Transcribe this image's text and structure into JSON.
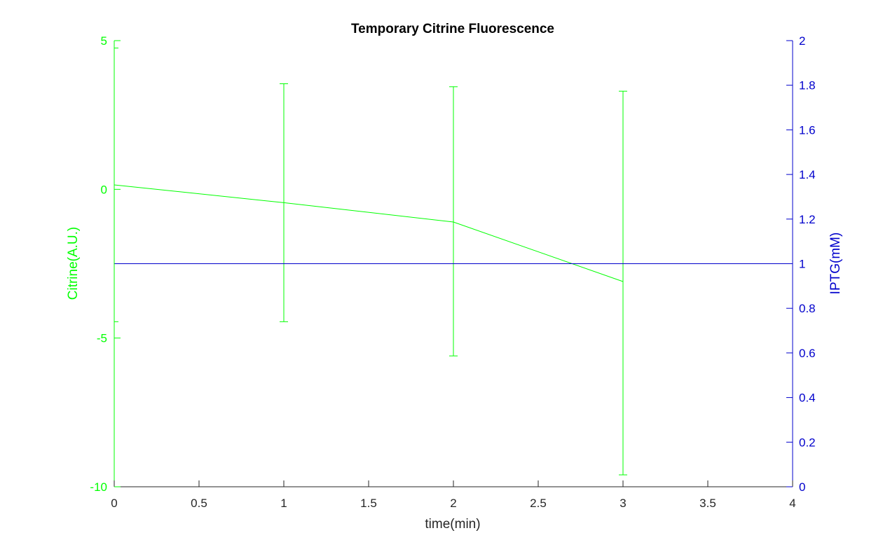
{
  "chart_data": {
    "type": "line",
    "title": "Temporary Citrine Fluorescence",
    "xlabel": "time(min)",
    "ylabel_left": "Citrine(A.U.)",
    "ylabel_right": "IPTG(mM)",
    "xlim": [
      0,
      4
    ],
    "ylim_left": [
      -10,
      5
    ],
    "ylim_right": [
      0,
      2
    ],
    "x_ticks": [
      "0",
      "0.5",
      "1",
      "1.5",
      "2",
      "2.5",
      "3",
      "3.5",
      "4"
    ],
    "y_left_ticks": [
      "-10",
      "-5",
      "0",
      "5"
    ],
    "y_right_ticks": [
      "0",
      "0.2",
      "0.4",
      "0.6",
      "0.8",
      "1",
      "1.2",
      "1.4",
      "1.6",
      "1.8",
      "2"
    ],
    "grid": false,
    "series": [
      {
        "axis": "left",
        "color": "#00ff00",
        "x": [
          0,
          1,
          2,
          3
        ],
        "y": [
          0.15,
          -0.45,
          -1.1,
          -3.1
        ],
        "error_lower": [
          -4.45,
          -4.45,
          -5.6,
          -9.6
        ],
        "error_upper": [
          4.75,
          3.55,
          3.45,
          3.3
        ]
      },
      {
        "axis": "right",
        "color": "#0000cc",
        "x": [
          0,
          4
        ],
        "y": [
          1,
          1
        ]
      }
    ]
  }
}
